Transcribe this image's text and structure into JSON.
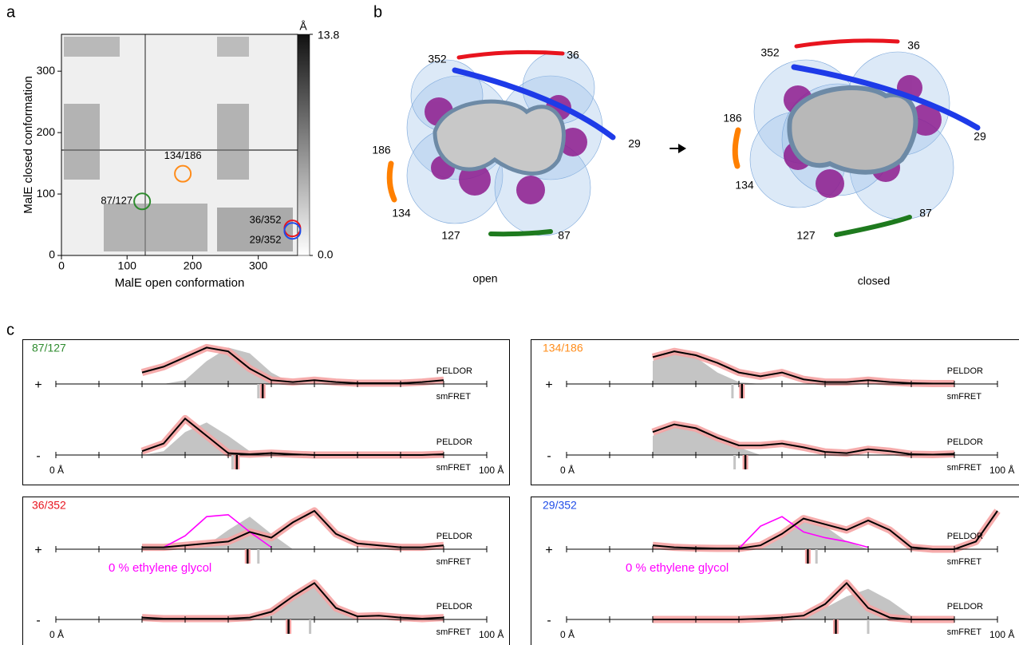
{
  "panel_labels": [
    "a",
    "b",
    "c"
  ],
  "heatmap": {
    "type": "heatmap",
    "xlabel": "MalE open conformation",
    "ylabel": "MalE closed conformation",
    "xlim": [
      0,
      360
    ],
    "ylim": [
      0,
      360
    ],
    "xticks": [
      0,
      100,
      200,
      300
    ],
    "yticks": [
      0,
      100,
      200,
      300
    ],
    "colorbar": {
      "unit": "Å",
      "clim": [
        0,
        13.8
      ],
      "ticks": [
        {
          "value": 13.8,
          "label": "13.8"
        },
        {
          "value": 0,
          "label": "0.0"
        }
      ]
    },
    "markers": [
      {
        "label": "87/127",
        "color": "#2e8b2e",
        "x": 123,
        "y": 88
      },
      {
        "label": "134/186",
        "color": "#ff8c1a",
        "x": 185,
        "y": 133
      },
      {
        "label": "36/352",
        "color": "#e8141e",
        "x": 352,
        "y": 44
      },
      {
        "label": "29/352",
        "color": "#1e4be8",
        "x": 352,
        "y": 40
      }
    ]
  },
  "structures": {
    "open": {
      "caption": "open",
      "labels": [
        "352",
        "36",
        "29",
        "186",
        "134",
        "127",
        "87"
      ]
    },
    "closed": {
      "caption": "closed",
      "labels": [
        "352",
        "36",
        "29",
        "186",
        "134",
        "127",
        "87"
      ]
    }
  },
  "distributions": {
    "type": "line",
    "xlim": [
      0,
      100
    ],
    "xticks": [
      {
        "value": 0,
        "label": "0 Å"
      },
      10,
      20,
      30,
      40,
      50,
      60,
      70,
      80,
      90,
      {
        "value": 100,
        "label": "100 Å"
      }
    ],
    "x": [
      20,
      25,
      30,
      35,
      40,
      45,
      50,
      55,
      60,
      65,
      70,
      75,
      80,
      85,
      90,
      95,
      100
    ],
    "ylim": [
      0,
      1
    ],
    "method_labels": [
      "PELDOR",
      "smFRET"
    ],
    "glycol_label": "0 % ethylene glycol",
    "colors": {
      "peldor": "#000000",
      "band": "#f5a3a3",
      "simulated": "#c4c4c4",
      "glycol": "#ff00ff",
      "smfret": "#000000"
    },
    "panels": [
      {
        "title": "87/127",
        "color": "#2e8b2e",
        "rows": [
          {
            "sign": "+",
            "peldor": [
              0.3,
              0.45,
              0.7,
              0.95,
              0.85,
              0.4,
              0.1,
              0.05,
              0.1,
              0.05,
              0.02,
              0.02,
              0.02,
              0.05,
              0.1,
              null,
              null
            ],
            "simulated": [
              0,
              0,
              0.1,
              0.6,
              0.95,
              0.8,
              0.3,
              0,
              0,
              0,
              0,
              0,
              0,
              0,
              0,
              null,
              null
            ],
            "smfret": 48,
            "smfret_simulated": 47
          },
          {
            "sign": "-",
            "peldor": [
              0.1,
              0.3,
              0.95,
              0.5,
              0.05,
              0.02,
              0.05,
              0.02,
              0,
              0,
              0,
              0,
              0,
              0,
              0.02,
              null,
              null
            ],
            "simulated": [
              0,
              0.1,
              0.6,
              0.85,
              0.5,
              0.1,
              0,
              0,
              0,
              0,
              0,
              0,
              0,
              0,
              0,
              null,
              null
            ],
            "smfret": 42,
            "smfret_simulated": 41
          }
        ]
      },
      {
        "title": "134/186",
        "color": "#ff8c1a",
        "rows": [
          {
            "sign": "+",
            "peldor": [
              0.7,
              0.85,
              0.75,
              0.55,
              0.3,
              0.2,
              0.3,
              0.12,
              0.05,
              0.05,
              0.1,
              0.05,
              0.02,
              0.01,
              0.01,
              null,
              null
            ],
            "simulated": [
              0.6,
              0.9,
              0.7,
              0.3,
              0.05,
              0,
              0,
              0,
              0,
              0,
              0,
              0,
              0,
              0,
              0,
              null,
              null
            ],
            "smfret": 40.7,
            "smfret_simulated": 38.5
          },
          {
            "sign": "-",
            "peldor": [
              0.6,
              0.8,
              0.7,
              0.45,
              0.25,
              0.25,
              0.3,
              0.2,
              0.08,
              0.05,
              0.15,
              0.1,
              0.02,
              0.01,
              0.03,
              null,
              null
            ],
            "simulated": [
              0.5,
              0.8,
              0.75,
              0.5,
              0.2,
              0,
              0,
              0,
              0,
              0,
              0,
              0,
              0,
              0,
              0,
              null,
              null
            ],
            "smfret": 41.5,
            "smfret_simulated": 39
          }
        ]
      },
      {
        "title": "36/352",
        "color": "#e8141e",
        "rows": [
          {
            "sign": "+",
            "peldor": [
              0.05,
              0.05,
              0.1,
              0.15,
              0.2,
              0.45,
              0.3,
              0.7,
              1,
              0.4,
              0.15,
              0.1,
              0.05,
              0.05,
              0.1,
              null,
              null
            ],
            "simulated": [
              0,
              0,
              0,
              0.1,
              0.5,
              0.85,
              0.4,
              0,
              0,
              0,
              0,
              0,
              0,
              0,
              0,
              null,
              null
            ],
            "glycol": [
              null,
              0.05,
              0.35,
              0.85,
              0.9,
              0.45,
              0.05,
              null,
              null,
              null,
              null,
              null,
              null,
              null,
              null,
              null,
              null
            ],
            "smfret": 44.5,
            "smfret_simulated": 47
          },
          {
            "sign": "-",
            "peldor": [
              0.05,
              0.02,
              0.02,
              0.02,
              0.02,
              0.05,
              0.2,
              0.6,
              0.95,
              0.3,
              0.08,
              0.1,
              0.05,
              0.02,
              0.05,
              null,
              null
            ],
            "simulated": [
              0,
              0,
              0,
              0,
              0,
              0,
              0.3,
              0.7,
              0.9,
              0.3,
              0,
              0,
              0,
              0,
              0,
              null,
              null
            ],
            "smfret": 54,
            "smfret_simulated": 59
          }
        ]
      },
      {
        "title": "29/352",
        "color": "#1e4be8",
        "rows": [
          {
            "sign": "+",
            "peldor": [
              0.1,
              0.05,
              0.03,
              0.02,
              0.02,
              0.1,
              0.4,
              0.8,
              0.65,
              0.5,
              0.75,
              0.5,
              0.05,
              0,
              0,
              0.2,
              1.0
            ],
            "simulated": [
              0,
              0,
              0,
              0,
              0,
              0,
              0.3,
              0.7,
              0.6,
              0.2,
              0,
              0,
              0,
              0,
              0,
              0,
              0
            ],
            "glycol": [
              null,
              null,
              null,
              null,
              0.02,
              0.6,
              0.85,
              0.45,
              0.3,
              0.2,
              0.05,
              null,
              null,
              null,
              null,
              null,
              null
            ],
            "smfret": 56,
            "smfret_simulated": 58
          },
          {
            "sign": "-",
            "peldor": [
              0,
              0,
              0,
              0,
              0,
              0.02,
              0.05,
              0.1,
              0.4,
              0.95,
              0.3,
              0.05,
              0,
              0,
              0,
              null,
              null
            ],
            "simulated": [
              0,
              0,
              0,
              0,
              0,
              0,
              0,
              0.1,
              0.3,
              0.6,
              0.8,
              0.5,
              0.1,
              0,
              0,
              null,
              null
            ],
            "smfret": 62.5,
            "smfret_simulated": 70
          }
        ]
      }
    ]
  }
}
